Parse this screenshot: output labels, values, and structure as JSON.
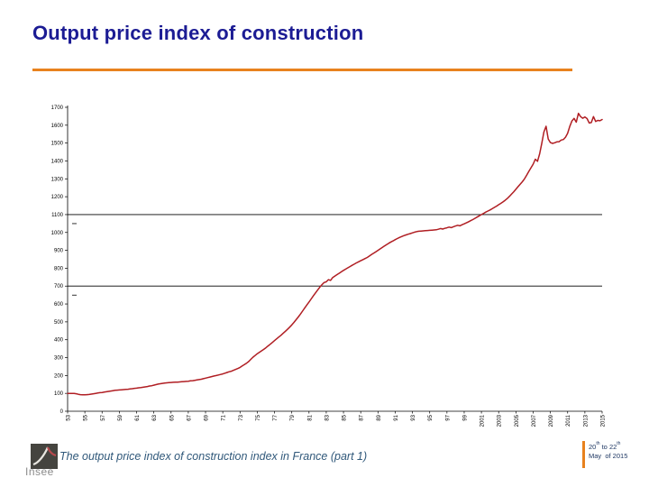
{
  "slide": {
    "title": "Output price index of construction",
    "caption": "The output price index of construction index in France (part 1)",
    "logo_text": "Insee",
    "footer_date": {
      "d1": "20",
      "s1": "th",
      "d2": " to 22",
      "s2": "th",
      "line2": "May  of 2015"
    }
  },
  "colors": {
    "title": "#1c1c94",
    "accent_rule": "#e8821e",
    "series_line": "#b01e23",
    "caption": "#30587a",
    "footer_text": "#1f3864",
    "footer_bar": "#e8821e",
    "axis": "#000000",
    "logo_text": "#8b8b8b"
  },
  "chart_data": {
    "type": "line",
    "title": "",
    "xlabel": "",
    "ylabel": "",
    "ylim": [
      0,
      1700
    ],
    "y_tick_step": 100,
    "grid": false,
    "legend_position": "none",
    "reference_lines": [
      700,
      1100
    ],
    "x_unit": "quarterly, 1953Q1 to 2015Q1",
    "x_tick_labels": [
      "53",
      "55",
      "57",
      "59",
      "61",
      "63",
      "65",
      "67",
      "69",
      "71",
      "73",
      "75",
      "77",
      "79",
      "81",
      "83",
      "85",
      "87",
      "89",
      "91",
      "93",
      "95",
      "97",
      "99",
      "2001",
      "2003",
      "2005",
      "2007",
      "2009",
      "2011",
      "2013",
      "2015"
    ],
    "x_tick_years": [
      1953,
      1955,
      1957,
      1959,
      1961,
      1963,
      1965,
      1967,
      1969,
      1971,
      1973,
      1975,
      1977,
      1979,
      1981,
      1983,
      1985,
      1987,
      1989,
      1991,
      1993,
      1995,
      1997,
      1999,
      2001,
      2003,
      2005,
      2007,
      2009,
      2011,
      2013,
      2015
    ],
    "x_start_year": 1953,
    "x_end_year": 2015,
    "series": [
      {
        "name": "Output price index of construction (France)",
        "color": "#b01e23",
        "frequency": "quarterly",
        "values": [
          100,
          100,
          100,
          100,
          98,
          95,
          93,
          92,
          92,
          93,
          94,
          96,
          98,
          100,
          102,
          104,
          105,
          107,
          109,
          111,
          113,
          115,
          117,
          118,
          119,
          120,
          121,
          122,
          123,
          125,
          126,
          128,
          129,
          131,
          132,
          134,
          136,
          138,
          141,
          143,
          146,
          149,
          152,
          154,
          156,
          158,
          159,
          160,
          161,
          162,
          163,
          163,
          164,
          165,
          166,
          167,
          168,
          170,
          171,
          173,
          175,
          177,
          179,
          182,
          185,
          188,
          191,
          194,
          197,
          200,
          203,
          206,
          209,
          213,
          217,
          221,
          224,
          229,
          234,
          239,
          245,
          253,
          261,
          269,
          278,
          290,
          302,
          312,
          322,
          330,
          338,
          346,
          355,
          365,
          375,
          385,
          395,
          405,
          415,
          425,
          436,
          447,
          458,
          470,
          483,
          497,
          512,
          527,
          543,
          560,
          577,
          594,
          611,
          628,
          645,
          662,
          678,
          694,
          708,
          720,
          724,
          736,
          732,
          748,
          756,
          764,
          772,
          780,
          788,
          795,
          802,
          809,
          816,
          823,
          830,
          836,
          842,
          848,
          854,
          860,
          868,
          876,
          884,
          892,
          900,
          908,
          916,
          924,
          932,
          940,
          947,
          953,
          960,
          966,
          972,
          977,
          982,
          986,
          990,
          994,
          998,
          1002,
          1005,
          1007,
          1008,
          1009,
          1010,
          1011,
          1012,
          1013,
          1014,
          1015,
          1018,
          1022,
          1019,
          1023,
          1026,
          1030,
          1027,
          1032,
          1036,
          1040,
          1037,
          1043,
          1048,
          1054,
          1060,
          1066,
          1072,
          1079,
          1086,
          1093,
          1100,
          1107,
          1114,
          1120,
          1126,
          1133,
          1140,
          1147,
          1155,
          1163,
          1171,
          1180,
          1190,
          1202,
          1215,
          1228,
          1242,
          1256,
          1270,
          1284,
          1300,
          1320,
          1342,
          1362,
          1382,
          1410,
          1398,
          1440,
          1497,
          1562,
          1594,
          1523,
          1503,
          1498,
          1502,
          1507,
          1508,
          1517,
          1520,
          1533,
          1554,
          1593,
          1624,
          1638,
          1617,
          1666,
          1648,
          1639,
          1646,
          1637,
          1612,
          1615,
          1648,
          1621,
          1627,
          1625,
          1632
        ]
      }
    ]
  }
}
